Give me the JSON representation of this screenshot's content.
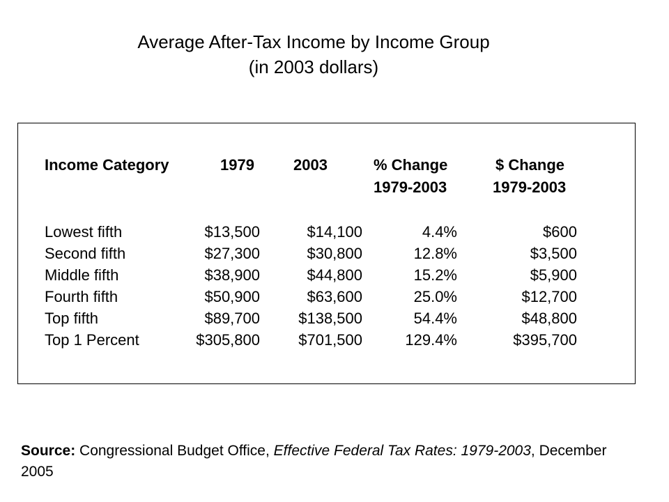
{
  "title": {
    "line1": "Average After-Tax Income by Income Group",
    "line2": "(in 2003 dollars)"
  },
  "chart_data": {
    "type": "table",
    "columns": [
      {
        "line1": "Income Category",
        "line2": ""
      },
      {
        "line1": "1979",
        "line2": ""
      },
      {
        "line1": "2003",
        "line2": ""
      },
      {
        "line1": "% Change",
        "line2": "1979-2003"
      },
      {
        "line1": "$ Change",
        "line2": "1979-2003"
      }
    ],
    "rows": [
      [
        "Lowest fifth",
        "$13,500",
        "$14,100",
        "4.4%",
        "$600"
      ],
      [
        "Second fifth",
        "$27,300",
        "$30,800",
        "12.8%",
        "$3,500"
      ],
      [
        "Middle fifth",
        "$38,900",
        "$44,800",
        "15.2%",
        "$5,900"
      ],
      [
        "Fourth fifth",
        "$50,900",
        "$63,600",
        "25.0%",
        "$12,700"
      ],
      [
        "Top fifth",
        "$89,700",
        "$138,500",
        "54.4%",
        "$48,800"
      ],
      [
        "Top 1 Percent",
        "$305,800",
        "$701,500",
        "129.4%",
        "$395,700"
      ]
    ]
  },
  "source": {
    "label": "Source:",
    "text1": " Congressional Budget Office, ",
    "italic1": "Effective Federal Tax Rates: 1979-2003",
    "text2": ", December 2005"
  }
}
